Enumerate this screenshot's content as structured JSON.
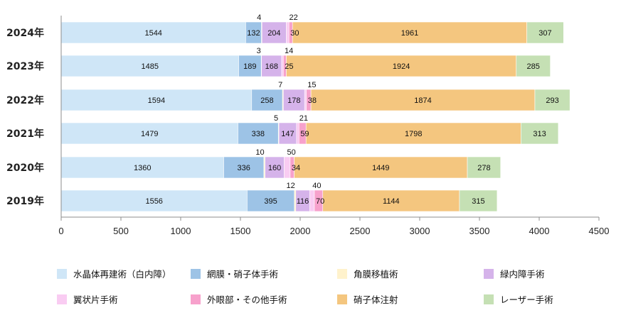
{
  "chart_data": {
    "type": "bar",
    "orientation": "horizontal",
    "stacked": true,
    "categories": [
      "2024年",
      "2023年",
      "2022年",
      "2021年",
      "2020年",
      "2019年"
    ],
    "series": [
      {
        "name": "水晶体再建術（白内障）",
        "color": "#cfe6f7",
        "values": [
          1544,
          1485,
          1594,
          1479,
          1360,
          1556
        ]
      },
      {
        "name": "網膜・硝子体手術",
        "color": "#9dc3e6",
        "values": [
          132,
          189,
          258,
          338,
          336,
          395
        ]
      },
      {
        "name": "角膜移植術",
        "color": "#fff2cc",
        "values": [
          4,
          3,
          7,
          5,
          10,
          12
        ]
      },
      {
        "name": "緑内障手術",
        "color": "#d5b3ea",
        "values": [
          204,
          168,
          178,
          147,
          160,
          116
        ]
      },
      {
        "name": "翼状片手術",
        "color": "#f9ccf2",
        "values": [
          22,
          14,
          15,
          21,
          50,
          40
        ]
      },
      {
        "name": "外眼部・その他手術",
        "color": "#f7a1cc",
        "values": [
          30,
          25,
          38,
          59,
          34,
          70
        ]
      },
      {
        "name": "硝子体注射",
        "color": "#f4c67f",
        "values": [
          1961,
          1924,
          1874,
          1798,
          1449,
          1144
        ]
      },
      {
        "name": "レーザー手術",
        "color": "#c5e0b4",
        "values": [
          307,
          285,
          293,
          313,
          278,
          315
        ]
      }
    ],
    "xlim": [
      0,
      4500
    ],
    "xticks": [
      "0",
      "500",
      "1000",
      "1500",
      "2000",
      "2500",
      "3000",
      "3500",
      "4000",
      "4500"
    ],
    "grid": false,
    "legend_position": "bottom"
  }
}
